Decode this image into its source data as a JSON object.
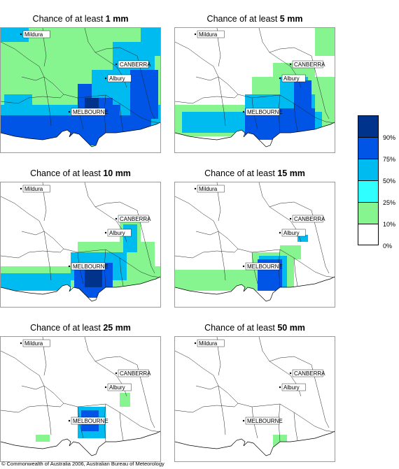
{
  "panels": [
    {
      "title_prefix": "Chance of at least ",
      "amount": "1 mm"
    },
    {
      "title_prefix": "Chance of at least ",
      "amount": "5 mm"
    },
    {
      "title_prefix": "Chance of at least ",
      "amount": "10 mm"
    },
    {
      "title_prefix": "Chance of at least ",
      "amount": "15 mm"
    },
    {
      "title_prefix": "Chance of at least ",
      "amount": "25 mm"
    },
    {
      "title_prefix": "Chance of at least ",
      "amount": "50 mm"
    }
  ],
  "place_labels": {
    "mildura": "Mildura",
    "canberra": "CANBERRA",
    "albury": "Albury",
    "melbourne": "MELBOURNE"
  },
  "legend": {
    "colors": [
      "#00338c",
      "#0055e6",
      "#00bbf0",
      "#30ffff",
      "#86f590",
      "#ffffff"
    ],
    "labels": [
      "90%",
      "75%",
      "50%",
      "25%",
      "10%",
      "0%"
    ]
  },
  "copyright": "© Commonwealth of Australia 2006, Australian Bureau of Meteorology"
}
